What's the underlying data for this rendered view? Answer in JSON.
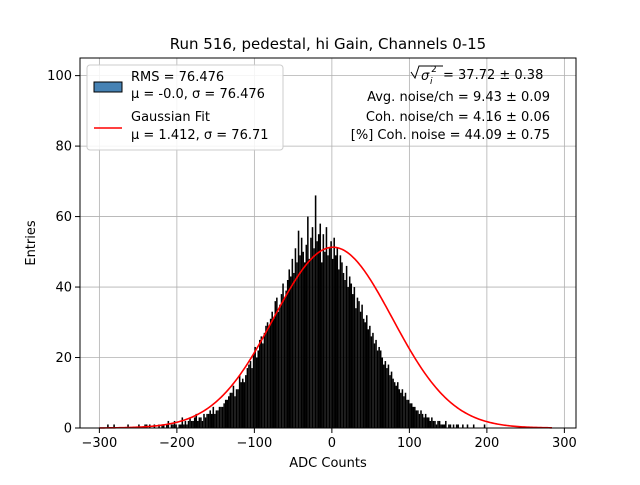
{
  "chart_data": {
    "type": "bar",
    "title": "Run 516, pedestal, hi Gain, Channels 0-15",
    "xlabel": "ADC Counts",
    "ylabel": "Entries",
    "xlim": [
      -325,
      315
    ],
    "ylim": [
      0,
      105
    ],
    "xticks": [
      -300,
      -200,
      -100,
      0,
      100,
      200,
      300
    ],
    "yticks": [
      0,
      20,
      40,
      60,
      80,
      100
    ],
    "grid": true,
    "legend_position": "top-left",
    "legend": [
      {
        "label_line1": "RMS = 76.476",
        "label_line2": "μ = -0.0, σ = 76.476",
        "color": "#4682b4",
        "kind": "patch"
      },
      {
        "label_line1": "Gaussian Fit",
        "label_line2": "μ = 1.412, σ = 76.71",
        "color": "#ff0000",
        "kind": "line"
      }
    ],
    "annotations": {
      "sqrt_prefix": "σ",
      "sqrt_value": " = 37.72 ± 0.38",
      "avg_noise": "Avg. noise/ch = 9.43 ± 0.09",
      "coh_noise": "Coh. noise/ch = 4.16 ± 0.06",
      "pct_coh_noise": "[%] Coh. noise = 44.09 ± 0.75"
    },
    "histogram": {
      "bin_start": -300,
      "bin_width": 2,
      "bar_color": "#000000",
      "counts": [
        0,
        0,
        0,
        0,
        0,
        1,
        0,
        0,
        0,
        1,
        0,
        0,
        0,
        0,
        0,
        0,
        0,
        0,
        1,
        0,
        0,
        0,
        0,
        0,
        0,
        1,
        0,
        0,
        0,
        1,
        1,
        0,
        1,
        0,
        0,
        1,
        0,
        0,
        1,
        0,
        1,
        1,
        0,
        1,
        2,
        0,
        1,
        1,
        2,
        1,
        0,
        1,
        1,
        3,
        1,
        2,
        1,
        2,
        3,
        2,
        2,
        3,
        4,
        2,
        3,
        3,
        2,
        4,
        3,
        4,
        4,
        5,
        4,
        6,
        4,
        5,
        5,
        6,
        6,
        6,
        7,
        8,
        8,
        9,
        10,
        10,
        12,
        9,
        11,
        11,
        15,
        13,
        14,
        13,
        15,
        17,
        18,
        19,
        17,
        21,
        23,
        20,
        22,
        25,
        26,
        24,
        27,
        29,
        30,
        29,
        31,
        33,
        31,
        36,
        37,
        33,
        35,
        38,
        41,
        37,
        39,
        42,
        45,
        43,
        48,
        44,
        51,
        47,
        56,
        49,
        54,
        50,
        47,
        52,
        60,
        48,
        54,
        57,
        51,
        66,
        53,
        55,
        58,
        47,
        55,
        50,
        57,
        49,
        51,
        53,
        48,
        54,
        49,
        51,
        45,
        49,
        47,
        44,
        42,
        46,
        40,
        43,
        41,
        38,
        40,
        34,
        37,
        36,
        33,
        35,
        31,
        30,
        32,
        28,
        29,
        26,
        27,
        24,
        25,
        22,
        23,
        22,
        20,
        18,
        19,
        17,
        18,
        15,
        16,
        14,
        13,
        12,
        13,
        11,
        10,
        11,
        9,
        10,
        8,
        8,
        7,
        7,
        6,
        6,
        5,
        5,
        4,
        5,
        4,
        3,
        4,
        3,
        3,
        2,
        3,
        2,
        2,
        1,
        2,
        2,
        1,
        1,
        1,
        2,
        0,
        1,
        1,
        0,
        1,
        0,
        1,
        1,
        0,
        0,
        1,
        0,
        0,
        1,
        0,
        0,
        0,
        1,
        0,
        0,
        0,
        0,
        0,
        0,
        1,
        0,
        0,
        0,
        0,
        0,
        0,
        0,
        0,
        0,
        0,
        0,
        0,
        0,
        0,
        0,
        0,
        0,
        0,
        0,
        0,
        0,
        0,
        0,
        0,
        0,
        0,
        0,
        0,
        0,
        0,
        0,
        0,
        0,
        0,
        0,
        0,
        0,
        0,
        0,
        0,
        0,
        0,
        0,
        0,
        0,
        0,
        0,
        0,
        0,
        0,
        0,
        0,
        0,
        0,
        0,
        0,
        0,
        0,
        0,
        0,
        0
      ]
    },
    "gaussian_fit": {
      "mu": 1.412,
      "sigma": 76.71,
      "amplitude": 51.3,
      "x_range": [
        -300,
        285
      ],
      "color": "#ff0000"
    }
  }
}
